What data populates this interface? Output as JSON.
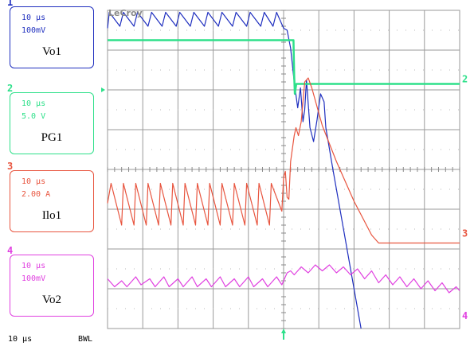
{
  "brand": "LeCroy",
  "channels": [
    {
      "num": "1",
      "timebase": "10 µs",
      "vdiv": "100mV",
      "name": "Vo1",
      "color": "#1f2fbf"
    },
    {
      "num": "2",
      "timebase": "10 µs",
      "vdiv": "5.0 V",
      "name": "PG1",
      "color": "#2ee08a"
    },
    {
      "num": "3",
      "timebase": "10 µs",
      "vdiv": "2.00 A",
      "name": "Ilo1",
      "color": "#e8553f"
    },
    {
      "num": "4",
      "timebase": "10 µs",
      "vdiv": "100mV",
      "name": "Vo2",
      "color": "#e040e0"
    }
  ],
  "footer": {
    "timebase": "10 µs",
    "bwl": "BWL"
  },
  "chart_data": {
    "type": "line",
    "grid": true,
    "x_divisions": 10,
    "y_divisions": 8,
    "x_unit": "10 µs/div",
    "xlim": [
      0,
      10
    ],
    "ylim": [
      -4,
      4
    ],
    "series": [
      {
        "name": "Vo1",
        "color": "#1f2fbf",
        "points": [
          [
            0,
            3.55
          ],
          [
            0.05,
            3.95
          ],
          [
            0.35,
            3.6
          ],
          [
            0.45,
            3.95
          ],
          [
            0.75,
            3.6
          ],
          [
            0.85,
            3.95
          ],
          [
            1.15,
            3.6
          ],
          [
            1.25,
            3.95
          ],
          [
            1.55,
            3.6
          ],
          [
            1.65,
            3.95
          ],
          [
            1.95,
            3.6
          ],
          [
            2.05,
            3.95
          ],
          [
            2.35,
            3.6
          ],
          [
            2.45,
            3.95
          ],
          [
            2.75,
            3.6
          ],
          [
            2.85,
            3.95
          ],
          [
            3.15,
            3.6
          ],
          [
            3.25,
            3.95
          ],
          [
            3.55,
            3.6
          ],
          [
            3.65,
            3.95
          ],
          [
            3.95,
            3.6
          ],
          [
            4.05,
            3.95
          ],
          [
            4.35,
            3.6
          ],
          [
            4.45,
            3.95
          ],
          [
            4.7,
            3.6
          ],
          [
            4.8,
            3.95
          ],
          [
            5.0,
            3.55
          ],
          [
            5.1,
            3.5
          ],
          [
            5.2,
            3.05
          ],
          [
            5.3,
            2.2
          ],
          [
            5.4,
            1.55
          ],
          [
            5.48,
            2.05
          ],
          [
            5.55,
            1.2
          ],
          [
            5.6,
            1.5
          ],
          [
            5.65,
            2.25
          ],
          [
            5.75,
            1.05
          ],
          [
            5.85,
            0.7
          ],
          [
            5.95,
            1.25
          ],
          [
            6.05,
            1.9
          ],
          [
            6.15,
            1.7
          ],
          [
            6.2,
            1.05
          ],
          [
            6.4,
            0
          ],
          [
            6.8,
            -2
          ],
          [
            7.2,
            -4
          ]
        ]
      },
      {
        "name": "PG1",
        "color": "#2ee08a",
        "points": [
          [
            0,
            3.25
          ],
          [
            5.28,
            3.25
          ],
          [
            5.3,
            2.35
          ],
          [
            5.32,
            1.9
          ],
          [
            5.36,
            2.15
          ],
          [
            5.45,
            2.15
          ],
          [
            10,
            2.15
          ]
        ]
      },
      {
        "name": "Ilo1",
        "color": "#e8553f",
        "points": [
          [
            0,
            -0.85
          ],
          [
            0.1,
            -0.35
          ],
          [
            0.4,
            -1.4
          ],
          [
            0.45,
            -0.35
          ],
          [
            0.75,
            -1.4
          ],
          [
            0.8,
            -0.35
          ],
          [
            1.1,
            -1.4
          ],
          [
            1.15,
            -0.35
          ],
          [
            1.45,
            -1.4
          ],
          [
            1.5,
            -0.35
          ],
          [
            1.8,
            -1.4
          ],
          [
            1.85,
            -0.35
          ],
          [
            2.15,
            -1.4
          ],
          [
            2.2,
            -0.35
          ],
          [
            2.5,
            -1.4
          ],
          [
            2.55,
            -0.35
          ],
          [
            2.85,
            -1.4
          ],
          [
            2.9,
            -0.35
          ],
          [
            3.2,
            -1.4
          ],
          [
            3.25,
            -0.35
          ],
          [
            3.55,
            -1.4
          ],
          [
            3.6,
            -0.35
          ],
          [
            3.9,
            -1.4
          ],
          [
            3.95,
            -0.35
          ],
          [
            4.25,
            -1.4
          ],
          [
            4.3,
            -0.35
          ],
          [
            4.6,
            -1.4
          ],
          [
            4.65,
            -0.35
          ],
          [
            4.95,
            -1.05
          ],
          [
            5.0,
            -0.2
          ],
          [
            5.05,
            -0.05
          ],
          [
            5.1,
            -0.7
          ],
          [
            5.15,
            -0.75
          ],
          [
            5.2,
            0.2
          ],
          [
            5.3,
            0.85
          ],
          [
            5.35,
            1.05
          ],
          [
            5.42,
            0.85
          ],
          [
            5.5,
            1.2
          ],
          [
            5.6,
            2.2
          ],
          [
            5.7,
            2.3
          ],
          [
            5.8,
            2.05
          ],
          [
            6.1,
            1.1
          ],
          [
            6.5,
            0.2
          ],
          [
            7.0,
            -0.8
          ],
          [
            7.5,
            -1.65
          ],
          [
            7.7,
            -1.85
          ],
          [
            10,
            -1.85
          ]
        ]
      },
      {
        "name": "Vo2",
        "color": "#e040e0",
        "points": [
          [
            0,
            -2.75
          ],
          [
            0.2,
            -2.95
          ],
          [
            0.4,
            -2.8
          ],
          [
            0.55,
            -2.95
          ],
          [
            0.8,
            -2.7
          ],
          [
            0.95,
            -2.9
          ],
          [
            1.2,
            -2.75
          ],
          [
            1.35,
            -2.95
          ],
          [
            1.6,
            -2.7
          ],
          [
            1.75,
            -2.95
          ],
          [
            2.0,
            -2.75
          ],
          [
            2.15,
            -2.95
          ],
          [
            2.4,
            -2.7
          ],
          [
            2.55,
            -2.95
          ],
          [
            2.8,
            -2.75
          ],
          [
            2.95,
            -2.95
          ],
          [
            3.2,
            -2.7
          ],
          [
            3.35,
            -2.95
          ],
          [
            3.6,
            -2.75
          ],
          [
            3.75,
            -2.95
          ],
          [
            4.0,
            -2.7
          ],
          [
            4.15,
            -2.95
          ],
          [
            4.4,
            -2.75
          ],
          [
            4.55,
            -2.95
          ],
          [
            4.8,
            -2.7
          ],
          [
            4.95,
            -2.9
          ],
          [
            5.1,
            -2.6
          ],
          [
            5.2,
            -2.55
          ],
          [
            5.3,
            -2.65
          ],
          [
            5.5,
            -2.45
          ],
          [
            5.7,
            -2.6
          ],
          [
            5.9,
            -2.4
          ],
          [
            6.1,
            -2.55
          ],
          [
            6.3,
            -2.4
          ],
          [
            6.5,
            -2.6
          ],
          [
            6.7,
            -2.45
          ],
          [
            6.9,
            -2.65
          ],
          [
            7.1,
            -2.5
          ],
          [
            7.3,
            -2.75
          ],
          [
            7.5,
            -2.55
          ],
          [
            7.7,
            -2.85
          ],
          [
            7.9,
            -2.65
          ],
          [
            8.1,
            -2.9
          ],
          [
            8.3,
            -2.7
          ],
          [
            8.5,
            -2.95
          ],
          [
            8.7,
            -2.75
          ],
          [
            8.9,
            -3.0
          ],
          [
            9.1,
            -2.8
          ],
          [
            9.3,
            -3.05
          ],
          [
            9.5,
            -2.85
          ],
          [
            9.7,
            -3.1
          ],
          [
            9.9,
            -2.95
          ],
          [
            10,
            -3.05
          ]
        ]
      }
    ]
  }
}
